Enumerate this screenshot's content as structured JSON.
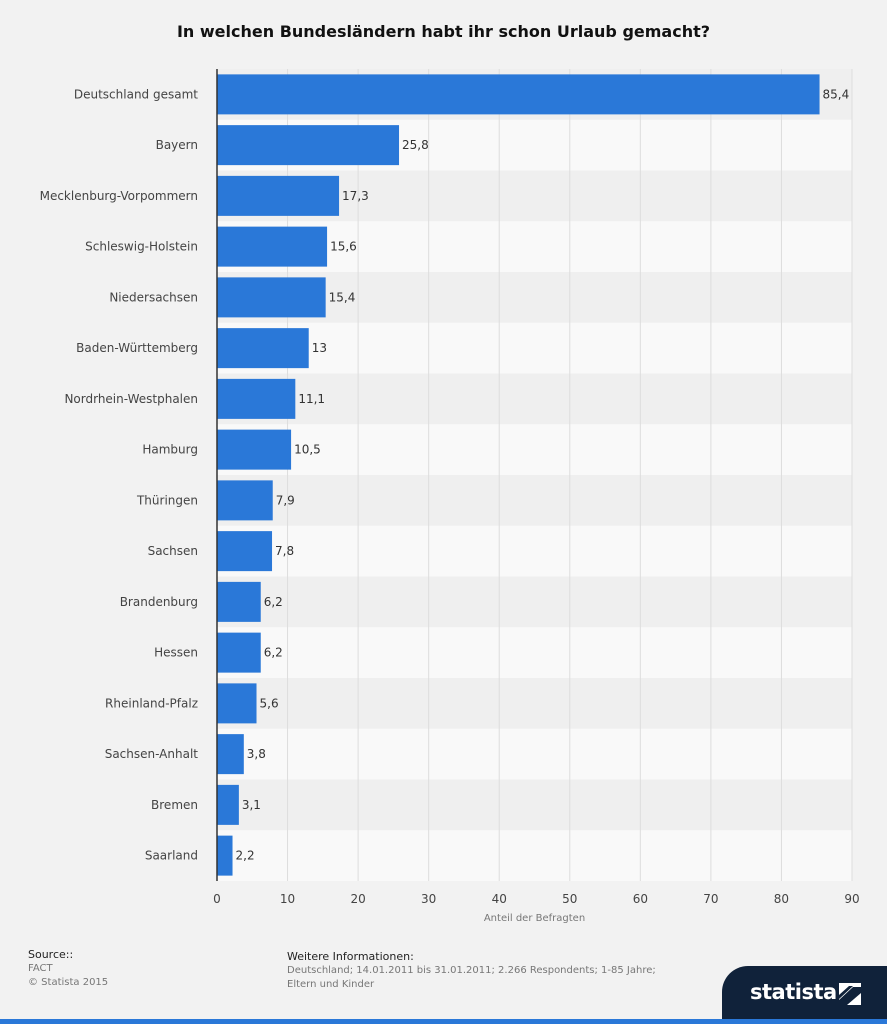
{
  "chart_data": {
    "type": "bar",
    "orientation": "horizontal",
    "title": "In welchen Bundesländern habt ihr schon Urlaub gemacht?",
    "xlabel": "Anteil der Befragten",
    "ylabel": "",
    "categories": [
      "Deutschland gesamt",
      "Bayern",
      "Mecklenburg-Vorpommern",
      "Schleswig-Holstein",
      "Niedersachsen",
      "Baden-Württemberg",
      "Nordrhein-Westphalen",
      "Hamburg",
      "Thüringen",
      "Sachsen",
      "Brandenburg",
      "Hessen",
      "Rheinland-Pfalz",
      "Sachsen-Anhalt",
      "Bremen",
      "Saarland"
    ],
    "values": [
      85.4,
      25.8,
      17.3,
      15.6,
      15.4,
      13,
      11.1,
      10.5,
      7.9,
      7.8,
      6.2,
      6.2,
      5.6,
      3.8,
      3.1,
      2.2
    ],
    "value_labels": [
      "85,4",
      "25,8",
      "17,3",
      "15,6",
      "15,4",
      "13",
      "11,1",
      "10,5",
      "7,9",
      "7,8",
      "6,2",
      "6,2",
      "5,6",
      "3,8",
      "3,1",
      "2,2"
    ],
    "xlim": [
      0,
      90
    ],
    "xticks": [
      0,
      10,
      20,
      30,
      40,
      50,
      60,
      70,
      80,
      90
    ],
    "grid": true,
    "bar_color": "#2a78d8"
  },
  "footer": {
    "source_heading": "Source::",
    "source_lines": [
      "FACT",
      "© Statista 2015"
    ],
    "info_heading": "Weitere Informationen:",
    "info_lines": [
      "Deutschland; 14.01.2011 bis 31.01.2011; 2.266 Respondents; 1-85 Jahre;",
      "Eltern und Kinder"
    ]
  },
  "brand": {
    "name": "statista",
    "color": "#10223a",
    "accent": "#2a78d8"
  }
}
